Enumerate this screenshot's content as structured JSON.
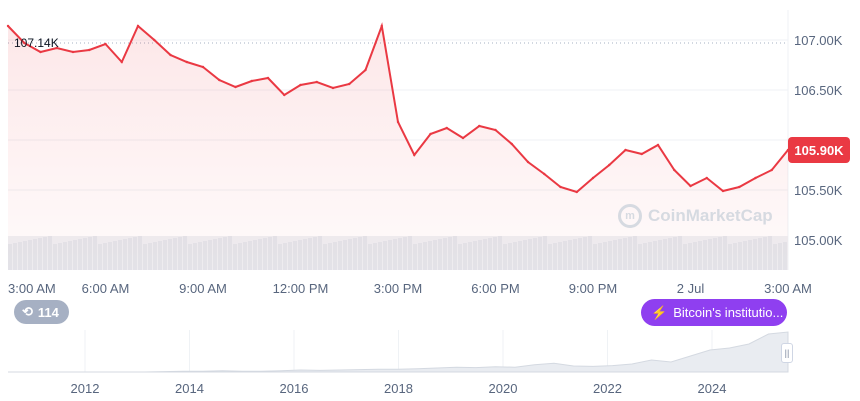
{
  "chart_data": {
    "type": "line",
    "x": [
      "3:00 AM",
      "3:30 AM",
      "4:00 AM",
      "4:30 AM",
      "5:00 AM",
      "5:30 AM",
      "6:00 AM",
      "6:30 AM",
      "7:00 AM",
      "7:30 AM",
      "8:00 AM",
      "8:30 AM",
      "9:00 AM",
      "9:30 AM",
      "10:00 AM",
      "10:30 AM",
      "11:00 AM",
      "11:30 AM",
      "12:00 PM",
      "12:30 PM",
      "1:00 PM",
      "1:30 PM",
      "2:00 PM",
      "2:30 PM",
      "3:00 PM",
      "3:30 PM",
      "4:00 PM",
      "4:30 PM",
      "5:00 PM",
      "5:30 PM",
      "6:00 PM",
      "6:30 PM",
      "7:00 PM",
      "7:30 PM",
      "8:00 PM",
      "8:30 PM",
      "9:00 PM",
      "9:30 PM",
      "10:00 PM",
      "10:30 PM",
      "11:00 PM",
      "11:30 PM",
      "12:00 AM",
      "12:30 AM",
      "1:00 AM",
      "1:30 AM",
      "2:00 AM",
      "2:30 AM",
      "3:00 AM"
    ],
    "values": [
      107140,
      106970,
      106880,
      106920,
      106880,
      106900,
      106960,
      106780,
      107140,
      107000,
      106850,
      106780,
      106730,
      106600,
      106530,
      106590,
      106620,
      106450,
      106550,
      106580,
      106520,
      106560,
      106700,
      107140,
      106180,
      105850,
      106060,
      106120,
      106020,
      106140,
      106100,
      105960,
      105780,
      105660,
      105530,
      105480,
      105620,
      105750,
      105900,
      105860,
      105950,
      105700,
      105540,
      105620,
      105490,
      105530,
      105620,
      105700,
      105900
    ],
    "ylim": [
      104700,
      107300
    ],
    "yticks": [
      "107.00K",
      "106.50K",
      "105.50K",
      "105.00K"
    ],
    "xticks": [
      "3:00 AM",
      "6:00 AM",
      "9:00 AM",
      "12:00 PM",
      "3:00 PM",
      "6:00 PM",
      "9:00 PM",
      "2 Jul",
      "3:00 AM"
    ],
    "current_price": "105.90K",
    "high_label": "107.14K",
    "line_color": "#ea3943",
    "watermark": "CoinMarketCap",
    "history_count": "114",
    "news_label": "Bitcoin's institutio...",
    "navigator": {
      "years": [
        "2012",
        "2014",
        "2016",
        "2018",
        "2020",
        "2022",
        "2024"
      ],
      "values": [
        0,
        0,
        0,
        0,
        0,
        0,
        0,
        0,
        0.01,
        0.02,
        0.02,
        0.03,
        0.02,
        0.02,
        0.03,
        0.05,
        0.04,
        0.05,
        0.06,
        0.07,
        0.07,
        0.08,
        0.1,
        0.12,
        0.11,
        0.13,
        0.12,
        0.18,
        0.22,
        0.15,
        0.14,
        0.16,
        0.2,
        0.3,
        0.25,
        0.4,
        0.55,
        0.6,
        0.7,
        0.95,
        1.0
      ]
    }
  }
}
